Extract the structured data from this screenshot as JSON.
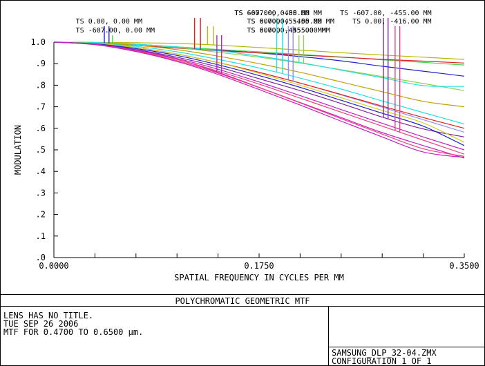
{
  "chart_data": {
    "type": "line",
    "title": "POLYCHROMATIC GEOMETRIC MTF",
    "xlabel": "SPATIAL FREQUENCY IN CYCLES PER MM",
    "ylabel": "MODULATION",
    "xlim": [
      0,
      0.35
    ],
    "ylim": [
      0,
      1
    ],
    "x_ticks": [
      {
        "value": 0,
        "label": "0.0000"
      },
      {
        "value": 0.175,
        "label": "0.1750"
      },
      {
        "value": 0.35,
        "label": "0.3500"
      }
    ],
    "y_ticks": [
      {
        "value": 1.0,
        "label": "1.0"
      },
      {
        "value": 0.9,
        "label": ".9"
      },
      {
        "value": 0.8,
        "label": ".8"
      },
      {
        "value": 0.7,
        "label": ".7"
      },
      {
        "value": 0.6,
        "label": ".6"
      },
      {
        "value": 0.5,
        "label": ".5"
      },
      {
        "value": 0.4,
        "label": ".4"
      },
      {
        "value": 0.3,
        "label": ".3"
      },
      {
        "value": 0.2,
        "label": ".2"
      },
      {
        "value": 0.1,
        "label": ".1"
      },
      {
        "value": 0.0,
        "label": ".0"
      }
    ],
    "grid": false,
    "x": [
      0,
      0.035,
      0.07,
      0.105,
      0.14,
      0.175,
      0.21,
      0.245,
      0.28,
      0.315,
      0.35
    ],
    "series": [
      {
        "name": "TS 0.00, 0.00 MM",
        "color": "#2020d0",
        "values": [
          1.0,
          0.998,
          0.99,
          0.977,
          0.963,
          0.95,
          0.933,
          0.913,
          0.888,
          0.865,
          0.842
        ],
        "label_row": 2,
        "label_x": 0.054,
        "marker_x": [
          0.043,
          0.047
        ]
      },
      {
        "name": "TS -607.00, 0.00 MM",
        "color": "#50d050",
        "values": [
          1.0,
          0.998,
          0.99,
          0.978,
          0.966,
          0.955,
          0.943,
          0.931,
          0.918,
          0.906,
          0.894
        ],
        "label_row": 1,
        "label_x": 0.054,
        "marker_x": [
          0.05
        ]
      },
      {
        "name": "TS -607.00, 455.00 MM",
        "color": "#e02020",
        "values": [
          1.0,
          0.996,
          0.985,
          0.972,
          0.96,
          0.95,
          0.94,
          0.93,
          0.92,
          0.912,
          0.903
        ],
        "label_row": 3,
        "label_x": 0.2,
        "marker_x": [
          0.12,
          0.125
        ]
      },
      {
        "name": "TS 0.00, 455.00 MM",
        "color": "#b8b800",
        "values": [
          1.0,
          0.999,
          0.997,
          0.994,
          0.986,
          0.975,
          0.963,
          0.951,
          0.94,
          0.93,
          0.92
        ],
        "label_row": 2,
        "label_x": 0.2,
        "marker_x": [
          0.131,
          0.136
        ]
      },
      {
        "name": "TS 607.00, 455.00 MM",
        "color": "#c020c0",
        "values": [
          1.0,
          0.99,
          0.96,
          0.92,
          0.86,
          0.79,
          0.72,
          0.65,
          0.58,
          0.52,
          0.462
        ],
        "label_row": 1,
        "label_x": 0.2,
        "marker_x": [
          0.139,
          0.143
        ]
      },
      {
        "name": "TS 607.00, 0.00 MM",
        "color": "#20e0e0",
        "values": [
          1.0,
          0.996,
          0.98,
          0.955,
          0.92,
          0.88,
          0.833,
          0.782,
          0.727,
          0.673,
          0.62
        ],
        "label_row": 3,
        "label_x": 0.2,
        "marker_x": [
          0.19,
          0.195
        ]
      },
      {
        "name": "TS 607.00, -455.00 MM",
        "color": "#9090f0",
        "values": [
          1.0,
          0.995,
          0.975,
          0.945,
          0.905,
          0.86,
          0.81,
          0.755,
          0.698,
          0.64,
          0.582
        ],
        "label_row": 2,
        "label_x": 0.2,
        "marker_x": [
          0.2,
          0.204
        ]
      },
      {
        "name": "TS 0.00, -455.00 MM",
        "color": "#90d050",
        "values": [
          1.0,
          0.998,
          0.99,
          0.975,
          0.953,
          0.93,
          0.903,
          0.872,
          0.84,
          0.808,
          0.775
        ],
        "label_row": 1,
        "label_x": 0.2,
        "marker_x": [
          0.209,
          0.213
        ]
      },
      {
        "name": "TS -607.00, -455.00 MM",
        "color": "#8020a0",
        "values": [
          1.0,
          0.99,
          0.965,
          0.93,
          0.885,
          0.83,
          0.775,
          0.715,
          0.652,
          0.597,
          0.56
        ],
        "label_row": 3,
        "label_x": 0.29,
        "marker_x": [
          0.281,
          0.285
        ]
      },
      {
        "name": "TS 0.00, -416.00 MM",
        "color": "#f04080",
        "values": [
          1.0,
          0.99,
          0.96,
          0.92,
          0.865,
          0.805,
          0.74,
          0.675,
          0.61,
          0.545,
          0.48
        ],
        "label_row": 2,
        "label_x": 0.29,
        "marker_x": [
          0.291,
          0.295
        ]
      }
    ],
    "extra_curves": [
      {
        "color": "#c0a000",
        "values": [
          1.0,
          0.997,
          0.985,
          0.965,
          0.935,
          0.9,
          0.86,
          0.815,
          0.77,
          0.725,
          0.7
        ]
      },
      {
        "color": "#e02020",
        "values": [
          1.0,
          0.993,
          0.975,
          0.945,
          0.905,
          0.86,
          0.81,
          0.757,
          0.703,
          0.65,
          0.6
        ]
      },
      {
        "color": "#20e0e0",
        "values": [
          1.0,
          0.998,
          0.99,
          0.978,
          0.96,
          0.935,
          0.905,
          0.87,
          0.835,
          0.798,
          0.795
        ]
      },
      {
        "color": "#d0d020",
        "values": [
          1.0,
          0.994,
          0.975,
          0.945,
          0.905,
          0.855,
          0.8,
          0.742,
          0.683,
          0.625,
          0.535
        ]
      },
      {
        "color": "#2020d0",
        "values": [
          1.0,
          0.992,
          0.97,
          0.938,
          0.895,
          0.845,
          0.79,
          0.73,
          0.67,
          0.61,
          0.52
        ]
      },
      {
        "color": "#c020c0",
        "values": [
          1.0,
          0.99,
          0.963,
          0.924,
          0.874,
          0.815,
          0.752,
          0.687,
          0.623,
          0.56,
          0.5
        ]
      },
      {
        "color": "#f04080",
        "values": [
          1.0,
          0.989,
          0.958,
          0.914,
          0.856,
          0.789,
          0.718,
          0.645,
          0.573,
          0.505,
          0.47
        ]
      },
      {
        "color": "#c020c0",
        "values": [
          1.0,
          0.988,
          0.956,
          0.91,
          0.85,
          0.78,
          0.708,
          0.633,
          0.56,
          0.49,
          0.465
        ]
      }
    ]
  },
  "info": {
    "lens_title": "LENS HAS NO TITLE.",
    "date": "TUE SEP 26 2006",
    "mtf_range": "MTF FOR 0.4700 TO 0.6500 μm.",
    "file_name": "SAMSUNG_DLP_32-04.ZMX",
    "configuration": "CONFIGURATION 1 OF 1"
  }
}
